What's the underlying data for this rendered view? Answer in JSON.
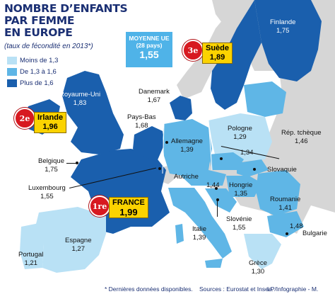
{
  "title": [
    "NOMBRE D’ENFANTS",
    "PAR FEMME",
    "EN EUROPE"
  ],
  "subtitle": "(taux de fécondité en 2013*)",
  "legend": [
    {
      "label": "Moins de 1,3",
      "color": "#b9e1f5"
    },
    {
      "label": "De 1,3 à 1,6",
      "color": "#5fb6e6"
    },
    {
      "label": "Plus de 1,6",
      "color": "#1a5fad"
    }
  ],
  "average": {
    "line1": "MOYENNE UE",
    "line2": "(28 pays)",
    "value": "1,55"
  },
  "countries": {
    "finlande": {
      "name": "Finlande",
      "value": "1,75"
    },
    "suede": {
      "name": "Suède",
      "value": "1,89",
      "rank": "3e"
    },
    "royaume_uni": {
      "name": "Royaume-Uni",
      "value": "1,83"
    },
    "danemark": {
      "name": "Danemark",
      "value": "1,67"
    },
    "irlande": {
      "name": "Irlande",
      "value": "1,96",
      "rank": "2e"
    },
    "pays_bas": {
      "name": "Pays-Bas",
      "value": "1,68"
    },
    "pologne": {
      "name": "Pologne",
      "value": "1,29"
    },
    "rep_tcheque": {
      "name": "Rép. tchèque",
      "value": "1,46"
    },
    "belgique": {
      "name": "Belgique",
      "value": "1,75"
    },
    "allemagne": {
      "name": "Allemagne",
      "value": "1,39"
    },
    "slovaquie": {
      "name": "Slovaquie",
      "value": "1,34"
    },
    "luxembourg": {
      "name": "Luxembourg",
      "value": "1,55"
    },
    "autriche": {
      "name": "Autriche",
      "value": "1,44"
    },
    "hongrie": {
      "name": "Hongrie",
      "value": "1,35"
    },
    "roumanie": {
      "name": "Roumanie",
      "value": "1,41"
    },
    "france": {
      "name": "FRANCE",
      "value": "1,99",
      "rank": "1re"
    },
    "slovenie": {
      "name": "Slovénie",
      "value": "1,55"
    },
    "italie": {
      "name": "Italie",
      "value": "1,39"
    },
    "bulgarie": {
      "name": "Bulgarie",
      "value": "1,48"
    },
    "espagne": {
      "name": "Espagne",
      "value": "1,27"
    },
    "portugal": {
      "name": "Portugal",
      "value": "1,21"
    },
    "grece": {
      "name": "Grèce",
      "value": "1,30"
    }
  },
  "footer": {
    "note": "* Dernières données disponibles.",
    "sources": "Sources : Eurostat et Insee.",
    "credit": "LP/Infographie - M. Grosse."
  },
  "colors": {
    "sea": "#ffffff",
    "low": "#b9e1f5",
    "mid": "#5fb6e6",
    "high": "#1a5fad",
    "nonEU": "#d6d6d6",
    "border": "#ffffff",
    "rank_box": "#fbd300",
    "rosette": "#d71920"
  }
}
